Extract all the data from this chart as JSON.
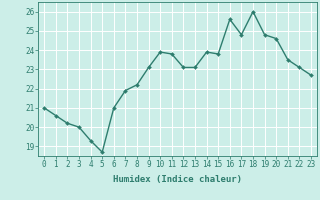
{
  "x": [
    0,
    1,
    2,
    3,
    4,
    5,
    6,
    7,
    8,
    9,
    10,
    11,
    12,
    13,
    14,
    15,
    16,
    17,
    18,
    19,
    20,
    21,
    22,
    23
  ],
  "y": [
    21.0,
    20.6,
    20.2,
    20.0,
    19.3,
    18.7,
    21.0,
    21.9,
    22.2,
    23.1,
    23.9,
    23.8,
    23.1,
    23.1,
    23.9,
    23.8,
    25.6,
    24.8,
    26.0,
    24.8,
    24.6,
    23.5,
    23.1,
    22.7
  ],
  "line_color": "#2e7d6e",
  "marker": "D",
  "marker_size": 2,
  "line_width": 1.0,
  "bg_color": "#cceee8",
  "grid_color": "#ffffff",
  "xlabel": "Humidex (Indice chaleur)",
  "xlim": [
    -0.5,
    23.5
  ],
  "ylim": [
    18.5,
    26.5
  ],
  "yticks": [
    19,
    20,
    21,
    22,
    23,
    24,
    25,
    26
  ],
  "xticks": [
    0,
    1,
    2,
    3,
    4,
    5,
    6,
    7,
    8,
    9,
    10,
    11,
    12,
    13,
    14,
    15,
    16,
    17,
    18,
    19,
    20,
    21,
    22,
    23
  ],
  "tick_color": "#2e7d6e",
  "label_color": "#2e7d6e",
  "axis_color": "#2e7d6e",
  "xlabel_fontsize": 6.5,
  "tick_fontsize": 5.5
}
